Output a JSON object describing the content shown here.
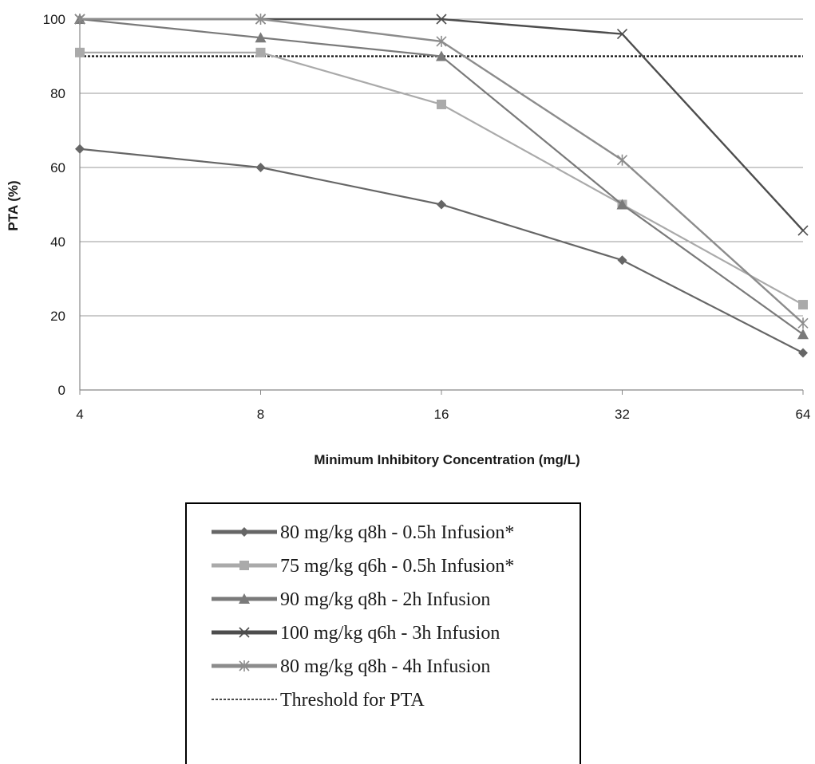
{
  "chart_data": {
    "type": "line",
    "x": [
      "4",
      "8",
      "16",
      "32",
      "64"
    ],
    "xlabel": "Minimum Inhibitory Concentration (mg/L)",
    "ylabel": "PTA (%)",
    "ylim": [
      0,
      100
    ],
    "yticks": [
      "0",
      "20",
      "40",
      "60",
      "80",
      "100"
    ],
    "grid": true,
    "legend_position": "bottom",
    "series": [
      {
        "name": "80 mg/kg q8h - 0.5h Infusion*",
        "values": [
          65,
          60,
          50,
          35,
          10
        ],
        "marker": "diamond",
        "color": "#666666",
        "width": 2.2
      },
      {
        "name": "75 mg/kg q6h - 0.5h Infusion*",
        "values": [
          91,
          91,
          77,
          50,
          23
        ],
        "marker": "square",
        "color": "#aaaaaa",
        "width": 2.2
      },
      {
        "name": "90 mg/kg q8h - 2h Infusion",
        "values": [
          100,
          95,
          90,
          50,
          15
        ],
        "marker": "triangle",
        "color": "#7a7a7a",
        "width": 2.2
      },
      {
        "name": "100 mg/kg q6h - 3h Infusion",
        "values": [
          100,
          100,
          100,
          96,
          43
        ],
        "marker": "x",
        "color": "#4d4d4d",
        "width": 2.4
      },
      {
        "name": "80 mg/kg q8h - 4h Infusion",
        "values": [
          100,
          100,
          94,
          62,
          18
        ],
        "marker": "star",
        "color": "#8c8c8c",
        "width": 2.4
      }
    ],
    "threshold": {
      "name": "Threshold for PTA",
      "value": 90,
      "color": "#111111"
    }
  }
}
